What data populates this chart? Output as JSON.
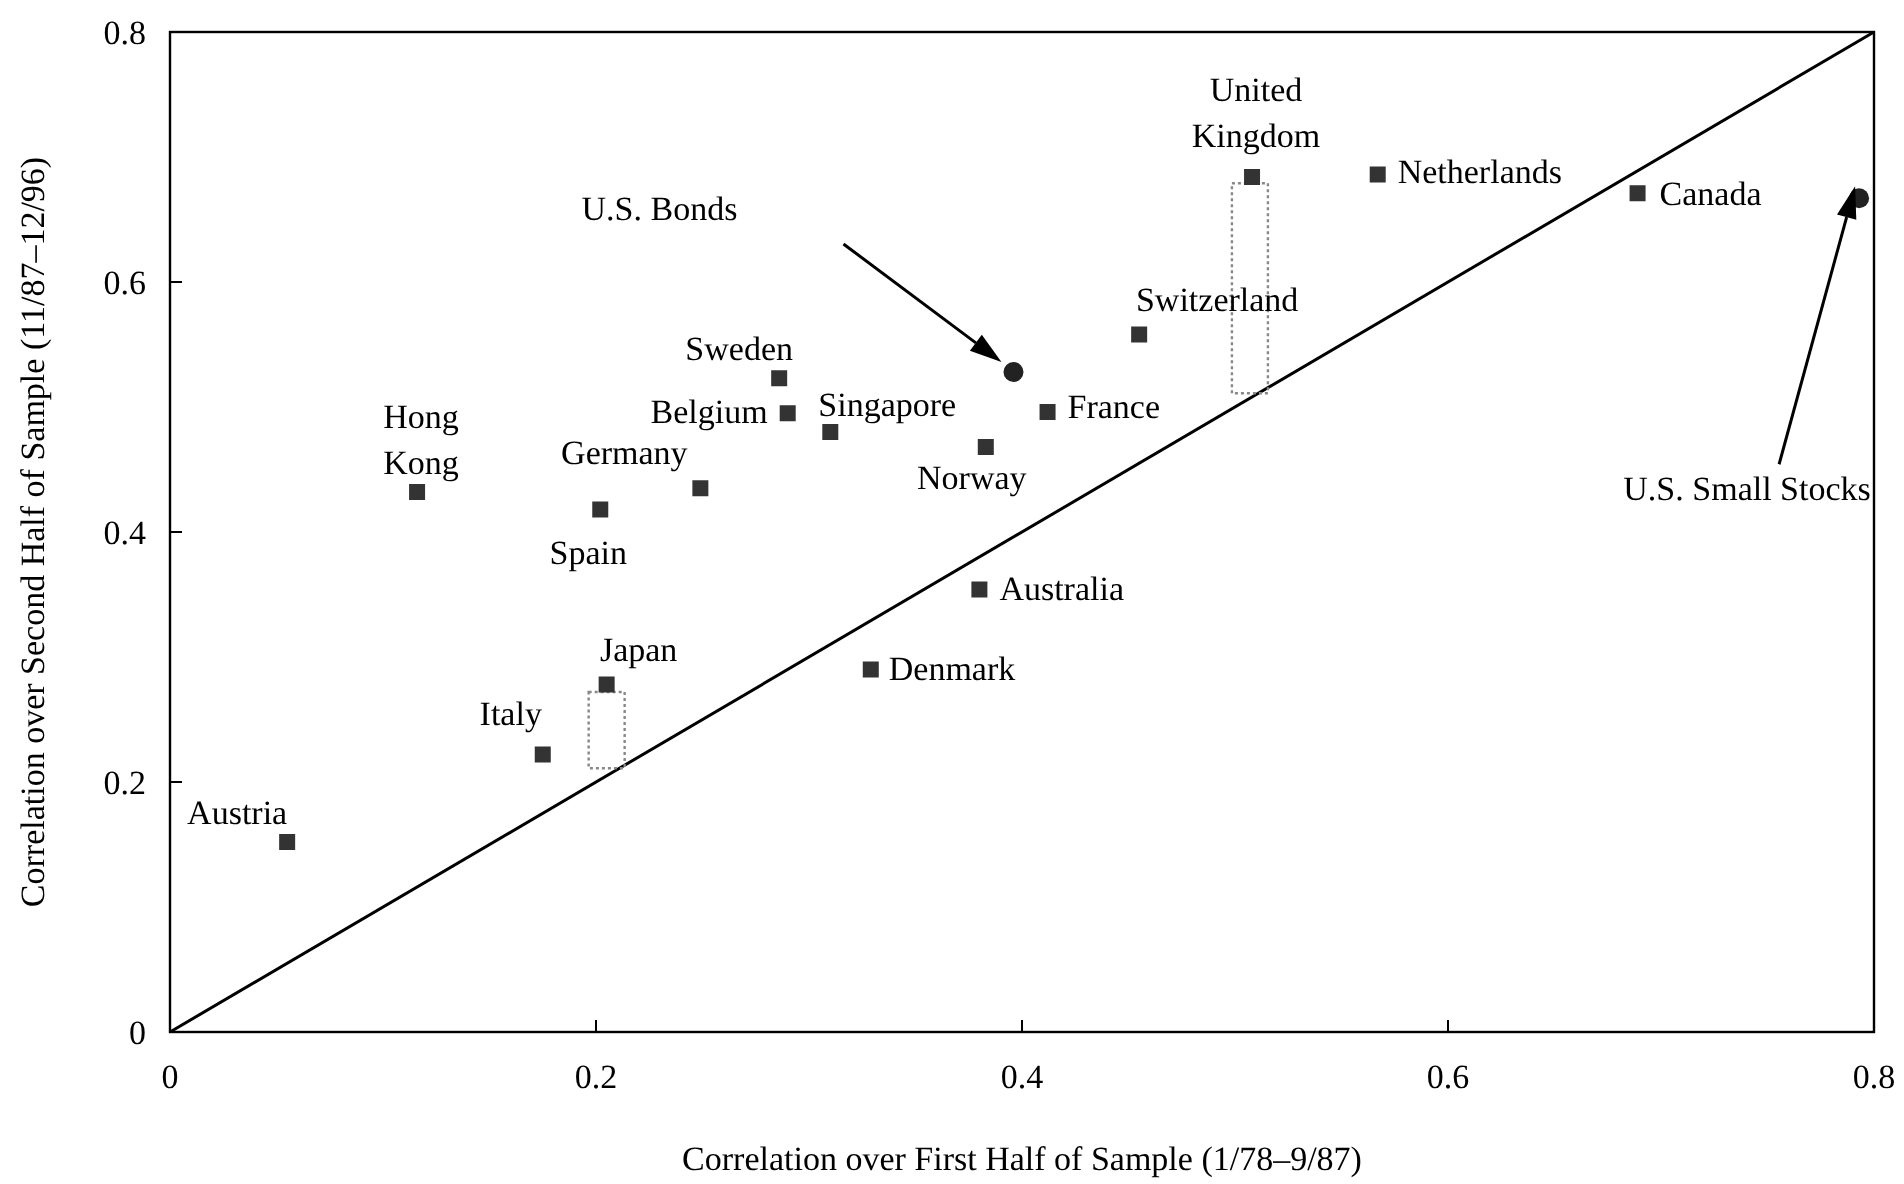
{
  "chart_data": {
    "type": "scatter",
    "xlabel": "Correlation over First Half of Sample (1/78–9/87)",
    "ylabel": "Correlation over Second Half of Sample (11/87–12/96)",
    "xlim": [
      0,
      0.8
    ],
    "ylim": [
      0,
      0.8
    ],
    "xticks": [
      0,
      0.2,
      0.4,
      0.6,
      0.8
    ],
    "yticks": [
      0,
      0.2,
      0.4,
      0.6,
      0.8
    ],
    "grid": false,
    "series": [
      {
        "type": "line",
        "color": "#000000",
        "x": [
          0,
          0.8
        ],
        "values": [
          0,
          0.8
        ],
        "line_style": "solid"
      },
      {
        "type": "bar",
        "color": "#888888",
        "line_style": "dotted",
        "x": [
          0.205,
          0.507
        ],
        "base": [
          0.211,
          0.511
        ],
        "values": [
          0.061,
          0.168
        ]
      },
      {
        "color": "#333333",
        "marker": "square",
        "x": [
          0.055,
          0.116,
          0.202,
          0.249,
          0.175,
          0.205,
          0.286,
          0.29,
          0.31,
          0.383,
          0.412,
          0.38,
          0.329,
          0.455,
          0.508,
          0.567,
          0.689
        ],
        "values": [
          0.152,
          0.432,
          0.418,
          0.435,
          0.222,
          0.278,
          0.523,
          0.495,
          0.48,
          0.468,
          0.496,
          0.354,
          0.29,
          0.558,
          0.684,
          0.686,
          0.671
        ]
      },
      {
        "color": "#222222",
        "marker": "circle",
        "x": [
          0.396,
          0.793
        ],
        "values": [
          0.528,
          0.667
        ]
      }
    ],
    "annotations": [
      {
        "text": "Austria",
        "x": 0.055,
        "y": 0.152
      },
      {
        "text": "Hong Kong",
        "x": 0.116,
        "y": 0.432
      },
      {
        "text": "Spain",
        "x": 0.202,
        "y": 0.418
      },
      {
        "text": "Germany",
        "x": 0.249,
        "y": 0.435
      },
      {
        "text": "Italy",
        "x": 0.175,
        "y": 0.222
      },
      {
        "text": "Japan",
        "x": 0.205,
        "y": 0.278
      },
      {
        "text": "Sweden",
        "x": 0.286,
        "y": 0.523
      },
      {
        "text": "Belgium",
        "x": 0.29,
        "y": 0.495
      },
      {
        "text": "Singapore",
        "x": 0.31,
        "y": 0.48
      },
      {
        "text": "Norway",
        "x": 0.383,
        "y": 0.468
      },
      {
        "text": "France",
        "x": 0.412,
        "y": 0.496
      },
      {
        "text": "Australia",
        "x": 0.38,
        "y": 0.354
      },
      {
        "text": "Denmark",
        "x": 0.329,
        "y": 0.29
      },
      {
        "text": "Switzerland",
        "x": 0.455,
        "y": 0.558
      },
      {
        "text": "United Kingdom",
        "x": 0.508,
        "y": 0.684
      },
      {
        "text": "Netherlands",
        "x": 0.567,
        "y": 0.686
      },
      {
        "text": "Canada",
        "x": 0.689,
        "y": 0.671
      },
      "U.S. Bonds",
      "U.S. Small Stocks"
    ]
  }
}
